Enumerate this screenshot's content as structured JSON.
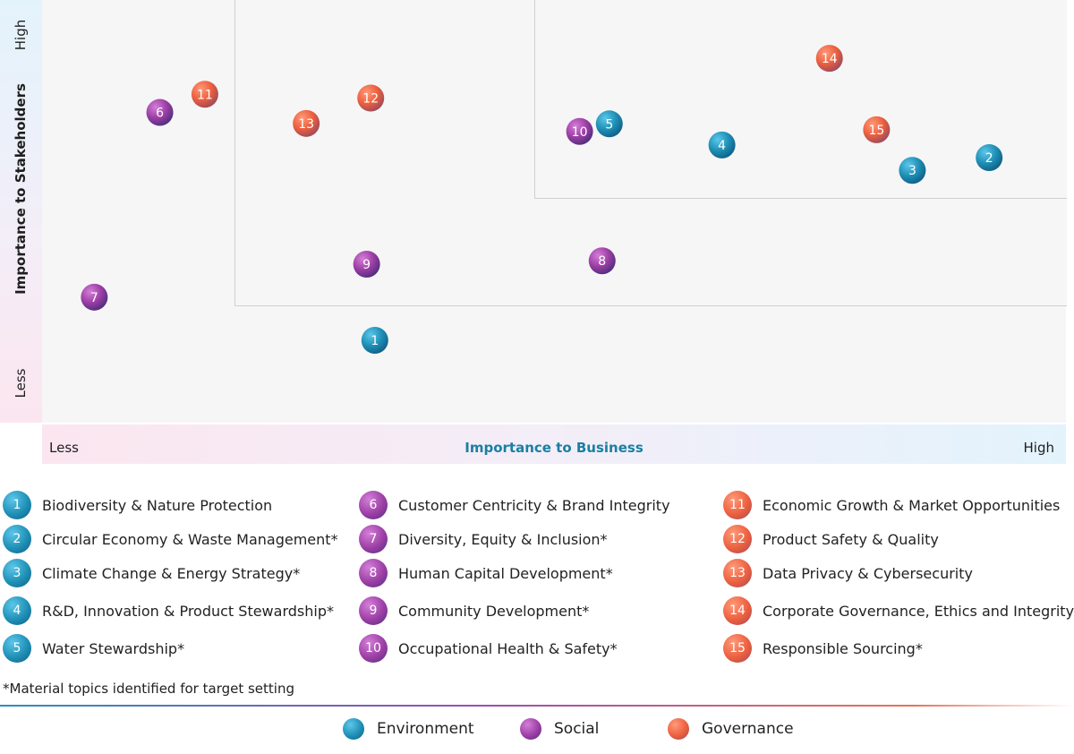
{
  "colors": {
    "Environment": "#1f8fb5",
    "Social": "#9c3ea5",
    "Governance": "#ec5f3e",
    "axis_title": "#1a7fa3"
  },
  "y_axis": {
    "title": "Importance to Stakeholders",
    "high": "High",
    "low": "Less"
  },
  "x_axis": {
    "title": "Importance to Business",
    "high": "High",
    "low": "Less"
  },
  "chart_data": {
    "type": "scatter",
    "xlabel": "Importance to Business",
    "ylabel": "Importance to Stakeholders",
    "xlim": [
      0,
      1
    ],
    "ylim": [
      0,
      1
    ],
    "points": [
      {
        "id": "1",
        "category": "Environment",
        "x": 0.325,
        "y": 0.195
      },
      {
        "id": "2",
        "category": "Environment",
        "x": 0.925,
        "y": 0.627
      },
      {
        "id": "3",
        "category": "Environment",
        "x": 0.85,
        "y": 0.597
      },
      {
        "id": "4",
        "category": "Environment",
        "x": 0.664,
        "y": 0.657
      },
      {
        "id": "5",
        "category": "Environment",
        "x": 0.554,
        "y": 0.707
      },
      {
        "id": "6",
        "category": "Social",
        "x": 0.115,
        "y": 0.734
      },
      {
        "id": "7",
        "category": "Social",
        "x": 0.051,
        "y": 0.297
      },
      {
        "id": "8",
        "category": "Social",
        "x": 0.547,
        "y": 0.383
      },
      {
        "id": "9",
        "category": "Social",
        "x": 0.317,
        "y": 0.375
      },
      {
        "id": "10",
        "category": "Social",
        "x": 0.525,
        "y": 0.689
      },
      {
        "id": "11",
        "category": "Governance",
        "x": 0.159,
        "y": 0.777
      },
      {
        "id": "12",
        "category": "Governance",
        "x": 0.321,
        "y": 0.768
      },
      {
        "id": "13",
        "category": "Governance",
        "x": 0.258,
        "y": 0.708
      },
      {
        "id": "14",
        "category": "Governance",
        "x": 0.769,
        "y": 0.862
      },
      {
        "id": "15",
        "category": "Governance",
        "x": 0.815,
        "y": 0.693
      }
    ]
  },
  "legend": [
    {
      "id": "1",
      "category": "Environment",
      "label": "Biodiversity & Nature Protection"
    },
    {
      "id": "2",
      "category": "Environment",
      "label": "Circular Economy & Waste Management*"
    },
    {
      "id": "3",
      "category": "Environment",
      "label": "Climate Change & Energy Strategy*"
    },
    {
      "id": "4",
      "category": "Environment",
      "label": "R&D, Innovation & Product Stewardship*"
    },
    {
      "id": "5",
      "category": "Environment",
      "label": "Water Stewardship*"
    },
    {
      "id": "6",
      "category": "Social",
      "label": "Customer Centricity & Brand Integrity"
    },
    {
      "id": "7",
      "category": "Social",
      "label": "Diversity, Equity & Inclusion*"
    },
    {
      "id": "8",
      "category": "Social",
      "label": "Human Capital Development*"
    },
    {
      "id": "9",
      "category": "Social",
      "label": "Community Development*"
    },
    {
      "id": "10",
      "category": "Social",
      "label": "Occupational Health & Safety*"
    },
    {
      "id": "11",
      "category": "Governance",
      "label": "Economic Growth & Market Opportunities"
    },
    {
      "id": "12",
      "category": "Governance",
      "label": "Product Safety & Quality"
    },
    {
      "id": "13",
      "category": "Governance",
      "label": "Data Privacy & Cybersecurity"
    },
    {
      "id": "14",
      "category": "Governance",
      "label": "Corporate Governance, Ethics and Integrity*"
    },
    {
      "id": "15",
      "category": "Governance",
      "label": "Responsible Sourcing*"
    }
  ],
  "footnote": "*Material topics identified for target setting",
  "categories": [
    {
      "key": "Environment",
      "label": "Environment"
    },
    {
      "key": "Social",
      "label": "Social"
    },
    {
      "key": "Governance",
      "label": "Governance"
    }
  ]
}
